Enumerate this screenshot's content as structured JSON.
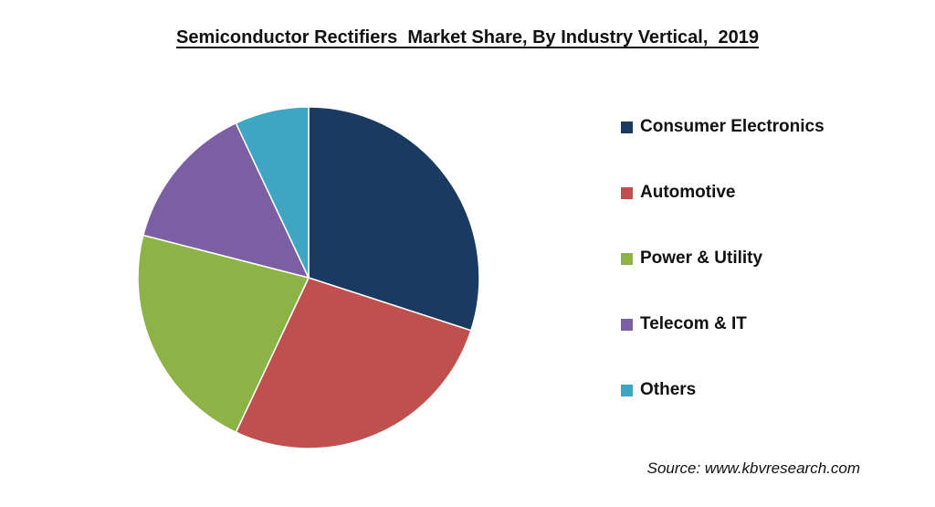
{
  "chart_data": {
    "type": "pie",
    "title": "Semiconductor Rectifiers  Market Share, By Industry Vertical,  2019",
    "legend_position": "right",
    "slices": [
      {
        "label": "Consumer Electronics",
        "value": 30,
        "color": "#1b3a5f"
      },
      {
        "label": "Automotive",
        "value": 27,
        "color": "#c0504d"
      },
      {
        "label": "Power & Utility",
        "value": 22,
        "color": "#8db346"
      },
      {
        "label": "Telecom & IT",
        "value": 14,
        "color": "#7b5fa3"
      },
      {
        "label": "Others",
        "value": 7,
        "color": "#3ea5c3"
      }
    ]
  },
  "source": "Source: www.kbvresearch.com"
}
